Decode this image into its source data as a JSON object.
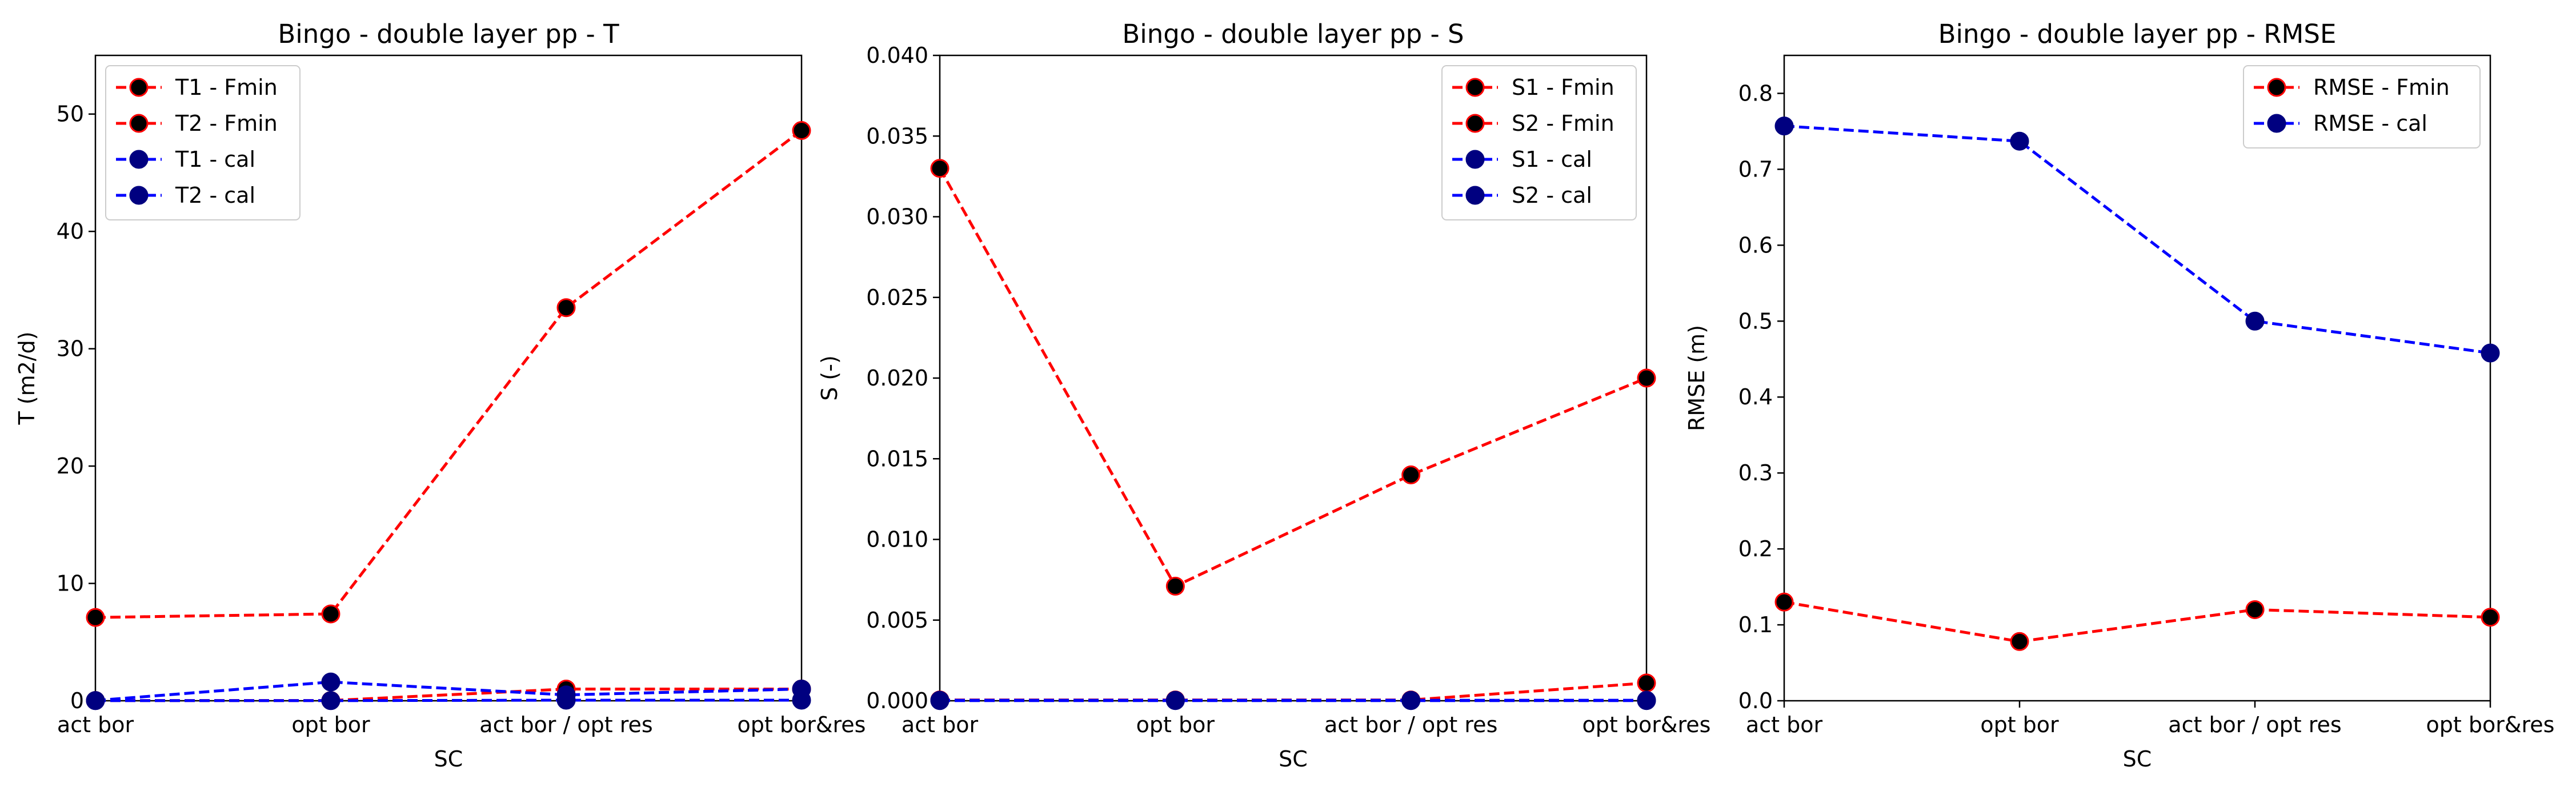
{
  "chart_data": [
    {
      "type": "line",
      "title": "Bingo - double layer pp - T",
      "xlabel": "SC",
      "ylabel": "T (m2/d)",
      "categories": [
        "act bor",
        "opt bor",
        "act bor / opt res",
        "opt bor&res"
      ],
      "ylim": [
        0,
        55
      ],
      "yticks": [
        0,
        10,
        20,
        30,
        40,
        50
      ],
      "ytick_labels": [
        "0",
        "10",
        "20",
        "30",
        "40",
        "50"
      ],
      "grid": false,
      "legend": "top-left",
      "series": [
        {
          "name": "T1 - Fmin",
          "color": "#ff0000",
          "values": [
            7.1,
            7.4,
            33.5,
            48.6
          ]
        },
        {
          "name": "T2 - Fmin",
          "color": "#ff0000",
          "values": [
            0.02,
            0.02,
            1.0,
            1.0
          ]
        },
        {
          "name": "T1 - cal",
          "color": "#0000ff",
          "values": [
            0.02,
            1.6,
            0.5,
            1.0
          ]
        },
        {
          "name": "T2 - cal",
          "color": "#0000ff",
          "values": [
            0.01,
            0.01,
            0.05,
            0.05
          ]
        }
      ]
    },
    {
      "type": "line",
      "title": "Bingo - double layer pp - S",
      "xlabel": "SC",
      "ylabel": "S (-)",
      "categories": [
        "act bor",
        "opt bor",
        "act bor / opt res",
        "opt bor&res"
      ],
      "ylim": [
        0,
        0.04
      ],
      "yticks": [
        0,
        0.005,
        0.01,
        0.015,
        0.02,
        0.025,
        0.03,
        0.035,
        0.04
      ],
      "ytick_labels": [
        "0.000",
        "0.005",
        "0.010",
        "0.015",
        "0.020",
        "0.025",
        "0.030",
        "0.035",
        "0.040"
      ],
      "grid": false,
      "legend": "top-right",
      "series": [
        {
          "name": "S1 - Fmin",
          "color": "#ff0000",
          "values": [
            0.033,
            0.0071,
            0.014,
            0.02
          ]
        },
        {
          "name": "S2 - Fmin",
          "color": "#ff0000",
          "values": [
            5e-05,
            5e-05,
            5e-05,
            0.0011
          ]
        },
        {
          "name": "S1 - cal",
          "color": "#0000ff",
          "values": [
            3e-05,
            3e-05,
            3e-05,
            3e-05
          ]
        },
        {
          "name": "S2 - cal",
          "color": "#0000ff",
          "values": [
            1e-05,
            1e-05,
            1e-05,
            1e-05
          ]
        }
      ]
    },
    {
      "type": "line",
      "title": "Bingo - double layer pp - RMSE",
      "xlabel": "SC",
      "ylabel": "RMSE (m)",
      "categories": [
        "act bor",
        "opt bor",
        "act bor / opt res",
        "opt bor&res"
      ],
      "ylim": [
        0,
        0.85
      ],
      "yticks": [
        0,
        0.1,
        0.2,
        0.3,
        0.4,
        0.5,
        0.6,
        0.7,
        0.8
      ],
      "ytick_labels": [
        "0.0",
        "0.1",
        "0.2",
        "0.3",
        "0.4",
        "0.5",
        "0.6",
        "0.7",
        "0.8"
      ],
      "grid": false,
      "legend": "top-right",
      "series": [
        {
          "name": "RMSE - Fmin",
          "color": "#ff0000",
          "values": [
            0.13,
            0.078,
            0.12,
            0.11
          ]
        },
        {
          "name": "RMSE - cal",
          "color": "#0000ff",
          "values": [
            0.757,
            0.737,
            0.5,
            0.458
          ]
        }
      ]
    }
  ]
}
